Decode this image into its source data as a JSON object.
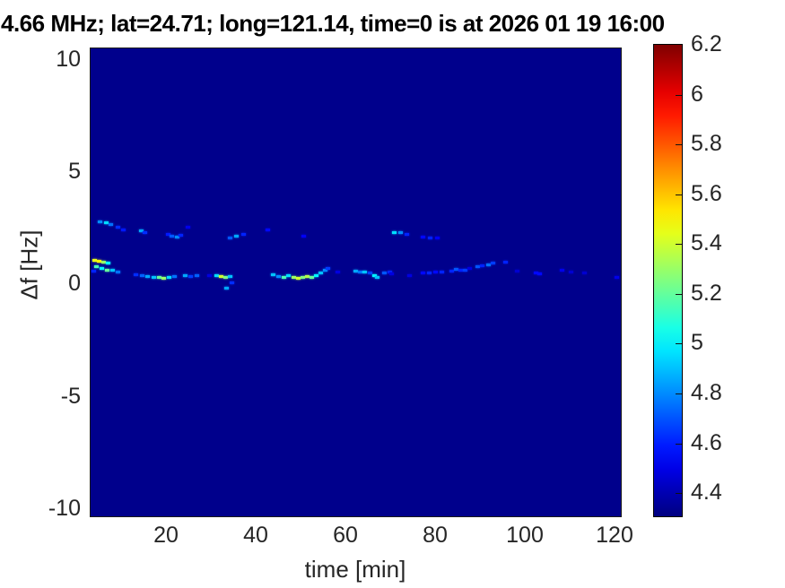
{
  "figure": {
    "title": "4.66 MHz;  lat=24.71; long=121.14, time=0 is at 2026 01 19 16:00",
    "xlabel": "time [min]",
    "ylabel": "Δf [Hz]"
  },
  "colors": {
    "plot_background": "#00008C",
    "tick_label": "#262626",
    "title_text": "#000000",
    "colorbar_border": "#000000"
  },
  "chart_data": {
    "type": "heatmap",
    "title": "4.66 MHz;  lat=24.71; long=121.14, time=0 is at 2026 01 19 16:00",
    "xlabel": "time [min]",
    "ylabel": "Δf [Hz]",
    "xlim": [
      3,
      121.6
    ],
    "ylim": [
      -10.4,
      10.5
    ],
    "xticks": [
      20,
      40,
      60,
      80,
      100,
      120
    ],
    "yticks": [
      10,
      5,
      0,
      -5,
      -10
    ],
    "grid": false,
    "colorbar": {
      "colormap": "jet",
      "vmin": 4.3,
      "vmax": 6.2,
      "ticks": [
        6.2,
        6,
        5.8,
        5.6,
        5.4,
        5.2,
        5,
        4.8,
        4.6,
        4.4
      ],
      "position": "right"
    },
    "background_value": 4.3,
    "points_format": [
      "time_min",
      "delta_f_hz",
      "value"
    ],
    "points": [
      [
        5.0,
        2.8,
        4.8
      ],
      [
        6.4,
        2.76,
        4.95
      ],
      [
        7.4,
        2.68,
        4.75
      ],
      [
        9.0,
        2.56,
        4.62
      ],
      [
        10.2,
        2.44,
        4.58
      ],
      [
        14.2,
        2.4,
        4.85
      ],
      [
        15.0,
        2.32,
        4.62
      ],
      [
        20.2,
        2.24,
        4.58
      ],
      [
        21.0,
        2.16,
        4.7
      ],
      [
        22.2,
        2.12,
        4.8
      ],
      [
        23.0,
        2.2,
        4.6
      ],
      [
        24.6,
        2.56,
        4.5
      ],
      [
        34.0,
        2.08,
        4.7
      ],
      [
        35.4,
        2.16,
        4.85
      ],
      [
        37.0,
        2.24,
        4.6
      ],
      [
        42.4,
        2.44,
        4.55
      ],
      [
        50.4,
        2.16,
        4.52
      ],
      [
        70.6,
        2.32,
        4.95
      ],
      [
        72.0,
        2.32,
        4.8
      ],
      [
        73.4,
        2.24,
        4.6
      ],
      [
        77.0,
        2.12,
        4.55
      ],
      [
        78.6,
        2.08,
        4.6
      ],
      [
        80.2,
        2.08,
        4.52
      ],
      [
        3.8,
        1.08,
        5.45
      ],
      [
        4.8,
        1.04,
        5.5
      ],
      [
        5.8,
        1.0,
        5.3
      ],
      [
        6.8,
        0.96,
        5.0
      ],
      [
        4.2,
        0.8,
        5.15
      ],
      [
        5.4,
        0.72,
        5.0
      ],
      [
        6.6,
        0.64,
        5.2
      ],
      [
        7.8,
        0.64,
        4.9
      ],
      [
        9.0,
        0.56,
        4.75
      ],
      [
        3.6,
        0.6,
        4.6
      ],
      [
        13.0,
        0.44,
        4.62
      ],
      [
        14.4,
        0.4,
        4.72
      ],
      [
        15.6,
        0.36,
        4.85
      ],
      [
        17.0,
        0.32,
        4.9
      ],
      [
        18.2,
        0.32,
        5.2
      ],
      [
        19.2,
        0.28,
        5.3
      ],
      [
        20.4,
        0.32,
        4.95
      ],
      [
        21.6,
        0.36,
        4.75
      ],
      [
        24.0,
        0.4,
        4.85
      ],
      [
        25.2,
        0.36,
        4.65
      ],
      [
        26.6,
        0.4,
        4.72
      ],
      [
        29.5,
        0.38,
        4.48
      ],
      [
        31.0,
        0.4,
        4.95
      ],
      [
        32.0,
        0.36,
        5.4
      ],
      [
        33.0,
        0.32,
        5.25
      ],
      [
        34.0,
        0.36,
        4.9
      ],
      [
        33.2,
        -0.16,
        4.85
      ],
      [
        34.4,
        0.08,
        4.62
      ],
      [
        43.6,
        0.44,
        4.9
      ],
      [
        44.8,
        0.36,
        4.8
      ],
      [
        46.0,
        0.32,
        5.15
      ],
      [
        47.0,
        0.4,
        4.95
      ],
      [
        48.2,
        0.32,
        5.3
      ],
      [
        49.2,
        0.28,
        5.4
      ],
      [
        50.2,
        0.32,
        5.25
      ],
      [
        51.2,
        0.36,
        5.35
      ],
      [
        52.2,
        0.32,
        5.2
      ],
      [
        53.2,
        0.4,
        5.0
      ],
      [
        54.2,
        0.52,
        4.9
      ],
      [
        55.2,
        0.64,
        4.8
      ],
      [
        55.8,
        0.72,
        4.65
      ],
      [
        58.0,
        0.55,
        4.48
      ],
      [
        62.0,
        0.6,
        4.85
      ],
      [
        63.0,
        0.56,
        4.75
      ],
      [
        64.0,
        0.56,
        4.9
      ],
      [
        65.2,
        0.52,
        4.65
      ],
      [
        66.2,
        0.4,
        5.0
      ],
      [
        66.8,
        0.32,
        4.9
      ],
      [
        68.4,
        0.52,
        4.7
      ],
      [
        69.6,
        0.56,
        4.6
      ],
      [
        70.0,
        0.45,
        4.48
      ],
      [
        74.0,
        0.4,
        4.48
      ],
      [
        77.0,
        0.52,
        4.55
      ],
      [
        78.4,
        0.52,
        4.6
      ],
      [
        79.8,
        0.56,
        4.55
      ],
      [
        81.2,
        0.56,
        4.6
      ],
      [
        83.4,
        0.6,
        4.6
      ],
      [
        84.4,
        0.68,
        4.7
      ],
      [
        85.4,
        0.64,
        4.6
      ],
      [
        86.4,
        0.64,
        4.65
      ],
      [
        87.5,
        0.7,
        4.48
      ],
      [
        89.2,
        0.8,
        4.7
      ],
      [
        90.2,
        0.84,
        4.6
      ],
      [
        91.6,
        0.88,
        4.75
      ],
      [
        92.6,
        0.96,
        4.65
      ],
      [
        95.4,
        1.0,
        4.6
      ],
      [
        98.0,
        0.6,
        4.45
      ],
      [
        102.2,
        0.52,
        4.55
      ],
      [
        103.0,
        0.48,
        4.55
      ],
      [
        108.0,
        0.64,
        4.5
      ],
      [
        110.0,
        0.55,
        4.45
      ],
      [
        113.0,
        0.5,
        4.45
      ],
      [
        120.2,
        0.32,
        4.5
      ]
    ]
  }
}
